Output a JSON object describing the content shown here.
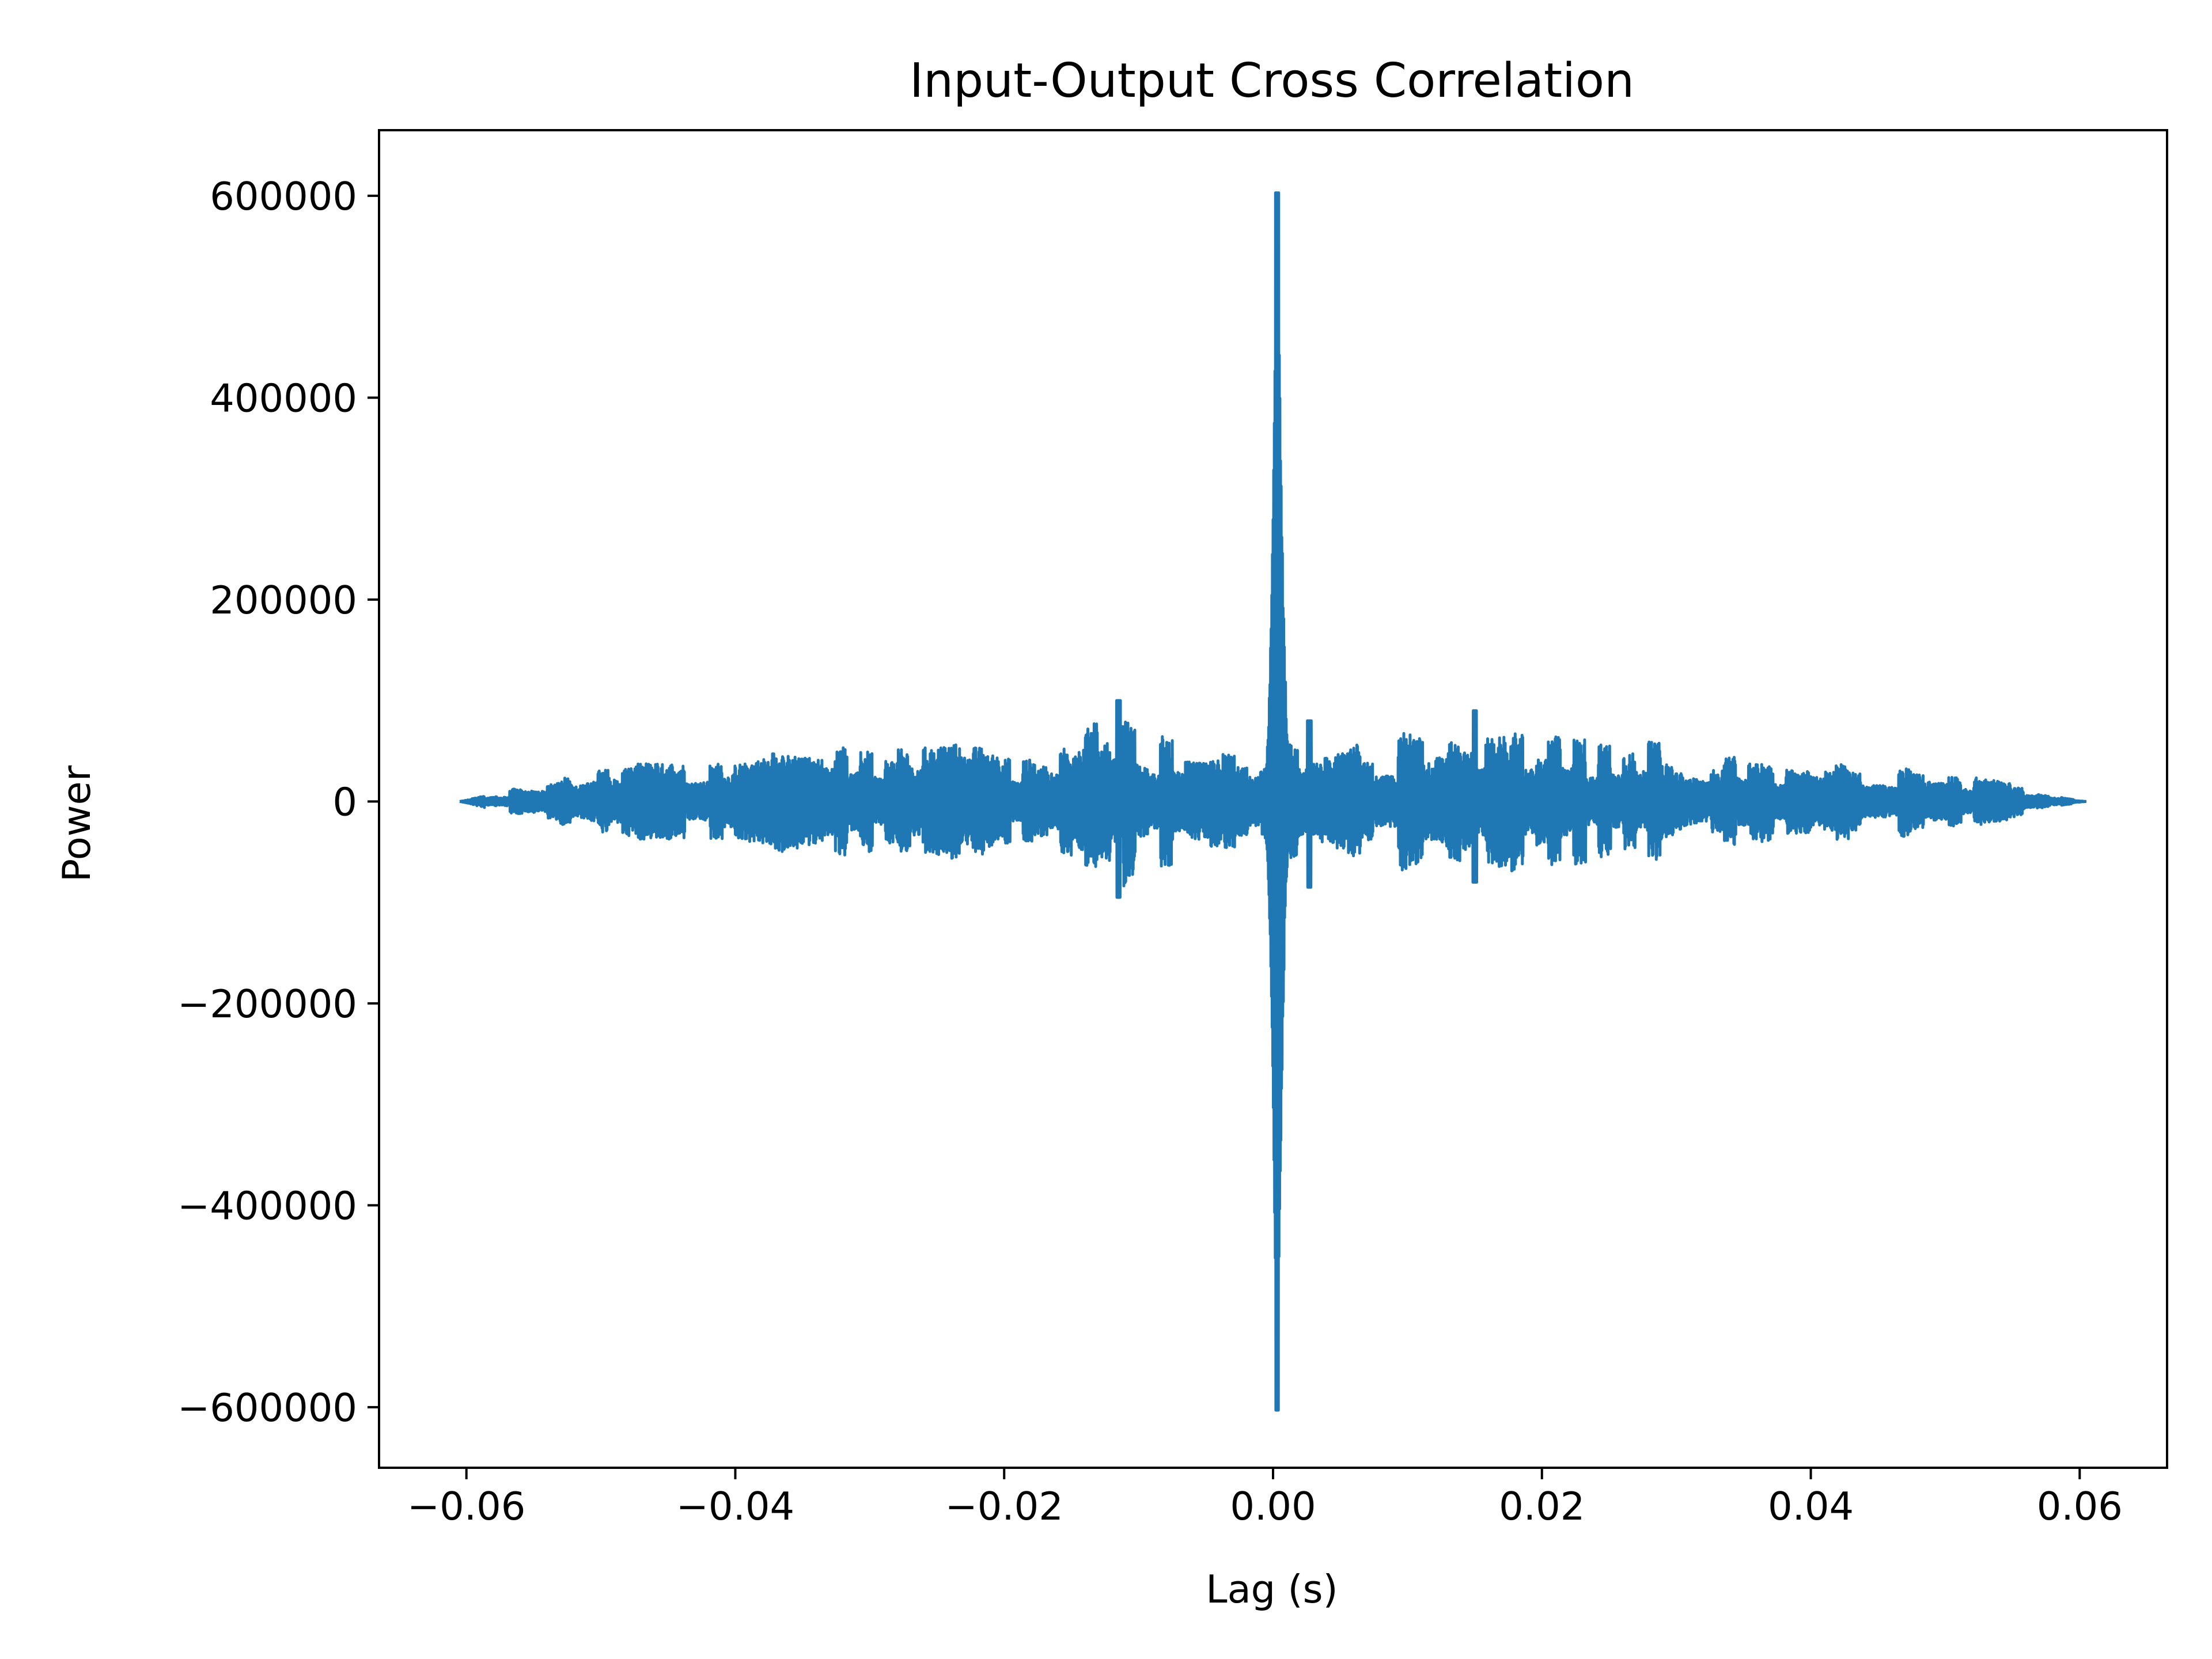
{
  "chart_data": {
    "type": "line",
    "title": "Input-Output Cross Correlation",
    "xlabel": "Lag (s)",
    "ylabel": "Power",
    "xlim": [
      -0.0665,
      0.0665
    ],
    "ylim": [
      -660000,
      665000
    ],
    "xticks": [
      -0.06,
      -0.04,
      -0.02,
      0.0,
      0.02,
      0.04,
      0.06
    ],
    "xtick_labels": [
      "−0.06",
      "−0.04",
      "−0.02",
      "0.00",
      "0.02",
      "0.04",
      "0.06"
    ],
    "yticks": [
      600000,
      400000,
      200000,
      0,
      -200000,
      -400000,
      -600000
    ],
    "ytick_labels": [
      "600000",
      "400000",
      "200000",
      "0",
      "−200000",
      "−400000",
      "−600000"
    ],
    "grid": false,
    "legend": "none",
    "line_color": "#1f77b4",
    "x_range": [
      -0.0605,
      0.0605
    ],
    "envelope": {
      "x": [
        -0.0605,
        -0.055,
        -0.05,
        -0.045,
        -0.04,
        -0.035,
        -0.03,
        -0.025,
        -0.02,
        -0.015,
        -0.0115,
        -0.01,
        -0.005,
        -0.001,
        0.0,
        0.0003,
        0.001,
        0.003,
        0.005,
        0.01,
        0.015,
        0.02,
        0.025,
        0.03,
        0.035,
        0.04,
        0.045,
        0.05,
        0.055,
        0.0605
      ],
      "amplitude": [
        0,
        20000,
        35000,
        42000,
        50000,
        60000,
        62000,
        58000,
        55000,
        60000,
        98000,
        75000,
        62000,
        58000,
        100000,
        600000,
        80000,
        60000,
        72000,
        68000,
        88000,
        65000,
        62000,
        58000,
        52000,
        48000,
        40000,
        30000,
        18000,
        0
      ]
    },
    "peak": {
      "x": 0.0003,
      "max": 603000,
      "min": -603000
    },
    "notable_spikes": [
      {
        "x": -0.0115,
        "max": 100000,
        "min": -95000
      },
      {
        "x": 0.015,
        "max": 90000,
        "min": -80000
      },
      {
        "x": 0.0027,
        "max": 80000,
        "min": -85000
      }
    ]
  }
}
